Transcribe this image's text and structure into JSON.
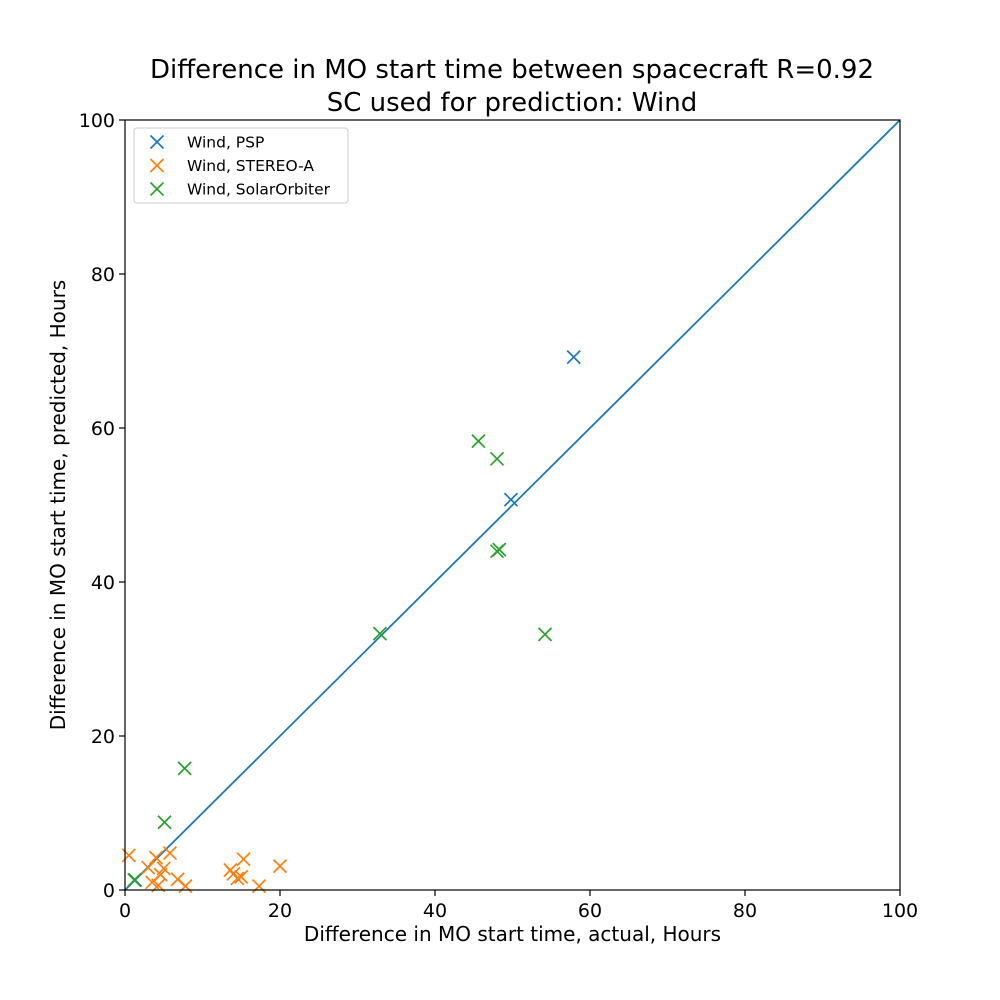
{
  "chart_data": {
    "type": "scatter",
    "title": "Difference in MO start time between spacecraft  R=0.92",
    "subtitle": "SC used for prediction: Wind",
    "xlabel": "Difference in MO start time, actual, Hours",
    "ylabel": "Difference in MO start time, predicted, Hours",
    "xlim": [
      0,
      100
    ],
    "ylim": [
      0,
      100
    ],
    "xticks": [
      0,
      20,
      40,
      60,
      80,
      100
    ],
    "yticks": [
      0,
      20,
      40,
      60,
      80,
      100
    ],
    "grid": false,
    "legend_position": "top-left",
    "marker": "x",
    "reference_line": {
      "x": [
        0,
        100
      ],
      "y": [
        0,
        100
      ],
      "color": "#1f77b4"
    },
    "series": [
      {
        "name": "Wind, PSP",
        "color": "#1f77b4",
        "x": [
          57.9,
          49.8,
          1.3
        ],
        "y": [
          69.2,
          50.7,
          1.3
        ]
      },
      {
        "name": "Wind, STEREO-A",
        "color": "#ff7f0e",
        "x": [
          0.5,
          3.0,
          3.5,
          4.0,
          4.3,
          4.6,
          5.0,
          5.8,
          6.8,
          7.8,
          13.6,
          14.0,
          14.5,
          15.0,
          15.3,
          17.3,
          20.0
        ],
        "y": [
          4.5,
          2.9,
          1.0,
          4.2,
          0.6,
          2.0,
          2.8,
          4.8,
          1.4,
          0.5,
          2.6,
          2.1,
          1.5,
          1.7,
          4.0,
          0.5,
          3.1
        ]
      },
      {
        "name": "Wind, SolarOrbiter",
        "color": "#2ca02c",
        "x": [
          1.2,
          5.1,
          7.7,
          32.9,
          45.6,
          48.0,
          48.0,
          48.3,
          54.2
        ],
        "y": [
          1.3,
          8.8,
          15.8,
          33.3,
          58.3,
          56.0,
          44.0,
          44.2,
          33.2
        ]
      }
    ]
  }
}
